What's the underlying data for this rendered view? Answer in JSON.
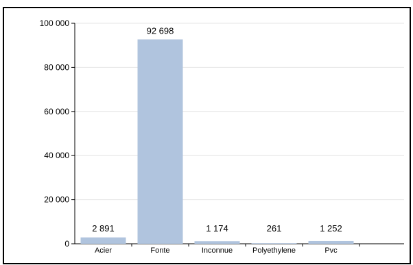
{
  "chart_data": {
    "type": "bar",
    "title": "",
    "xlabel": "",
    "ylabel": "",
    "categories": [
      "Acier",
      "Fonte",
      "Inconnue",
      "Polyethylene",
      "Pvc"
    ],
    "values": [
      2891,
      92698,
      1174,
      261,
      1252
    ],
    "value_labels": [
      "2 891",
      "92 698",
      "1 174",
      "261",
      "1 252"
    ],
    "ylim": [
      0,
      100000
    ],
    "yticks": [
      0,
      20000,
      40000,
      60000,
      80000,
      100000
    ],
    "ytick_labels": [
      "0",
      "20 000",
      "40 000",
      "60 000",
      "80 000",
      "100 000"
    ],
    "grid": true,
    "legend": "none",
    "bar_color": "#b0c4de",
    "grid_color": "#e4e4e4"
  }
}
